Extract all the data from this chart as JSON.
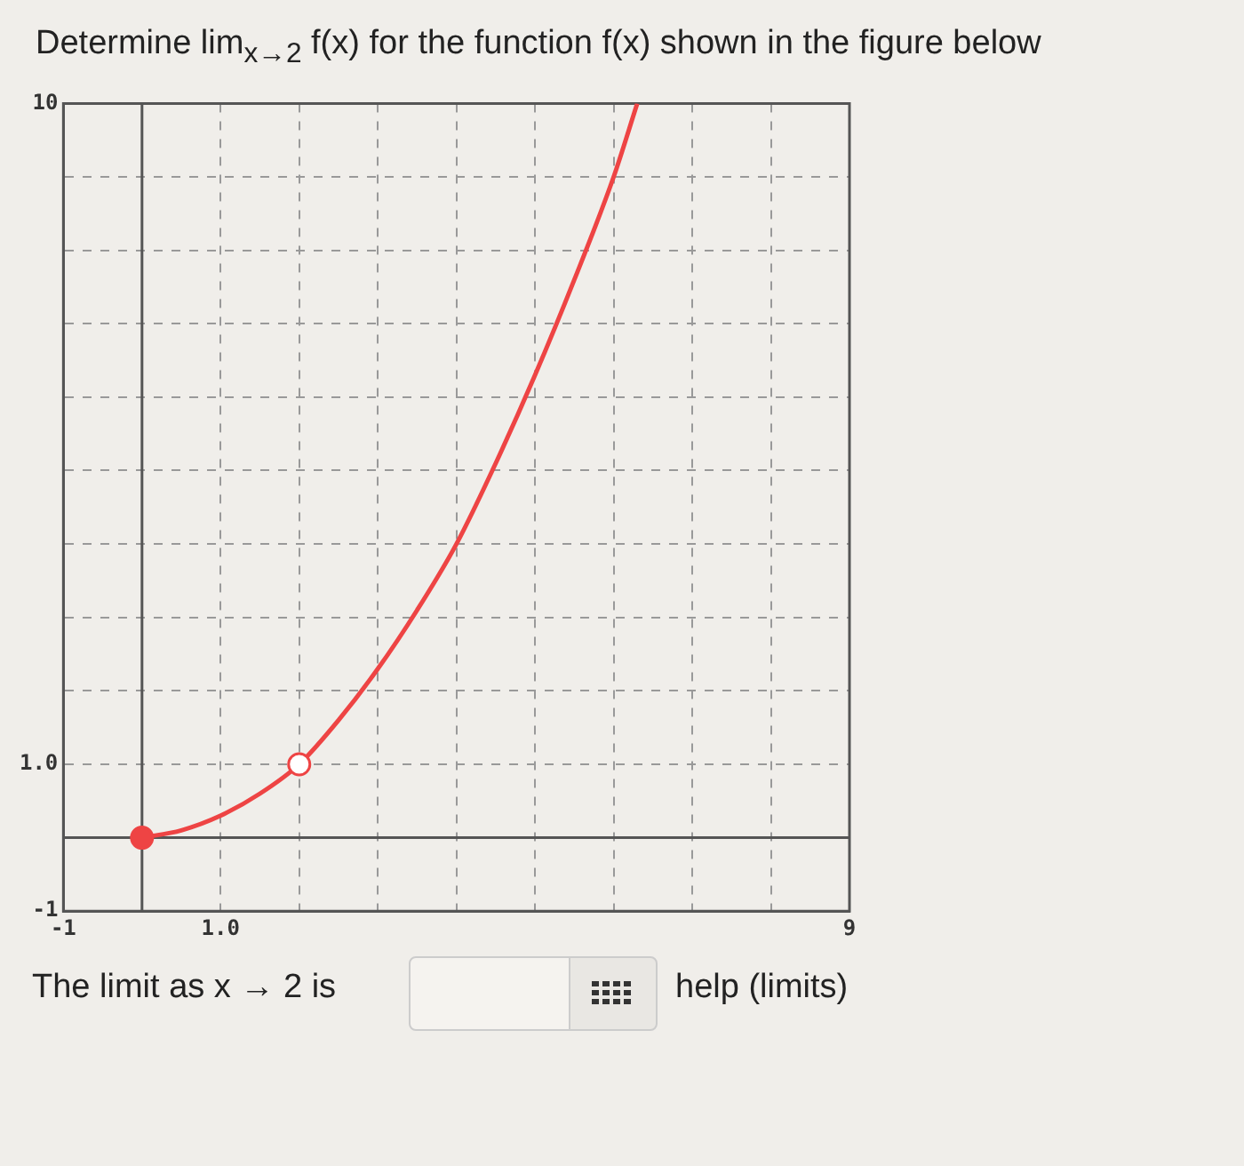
{
  "chart_data": {
    "type": "line",
    "title": "Determine lim$_{x→2}$ f(x) for the function f(x) shown in the figure below",
    "annotations": [
      "The limit as x → 2 is",
      "help (limits)"
    ],
    "xlim": [
      -1,
      9
    ],
    "ylim": [
      -1,
      10
    ],
    "xticks": [
      -1,
      {
        "value": 0,
        "label": null
      },
      {
        "value": 1,
        "label": "1.0"
      },
      {
        "value": 2,
        "label": null
      },
      {
        "value": 3,
        "label": null
      },
      {
        "value": 4,
        "label": null
      },
      {
        "value": 5,
        "label": null
      },
      {
        "value": 6,
        "label": null
      },
      {
        "value": 7,
        "label": null
      },
      {
        "value": 8,
        "label": null
      },
      9
    ],
    "yticks": [
      -1,
      {
        "value": 0,
        "label": null
      },
      {
        "value": 1,
        "label": "1.0"
      },
      {
        "value": 2,
        "label": null
      },
      {
        "value": 3,
        "label": null
      },
      {
        "value": 4,
        "label": null
      },
      {
        "value": 5,
        "label": null
      },
      {
        "value": 6,
        "label": null
      },
      {
        "value": 7,
        "label": null
      },
      {
        "value": 8,
        "label": null
      },
      {
        "value": 9,
        "label": null
      },
      10
    ],
    "grid": true,
    "legend": false,
    "series": [
      {
        "type": "line",
        "marker": "none",
        "color": "#ee4444",
        "x": [
          0,
          0.5,
          1,
          1.5,
          2,
          2.5,
          3,
          3.5,
          4,
          4.5,
          5,
          5.5,
          6,
          6.3
        ],
        "values": [
          0,
          0.1,
          0.3,
          0.6,
          1,
          1.6,
          2.3,
          3.1,
          4,
          5.1,
          6.3,
          7.6,
          9,
          10
        ]
      },
      {
        "type": "scatter",
        "marker": "circle",
        "color": "#ee4444",
        "x": [
          0
        ],
        "values": [
          0
        ]
      },
      {
        "type": "scatter",
        "marker": "circle",
        "color": "#ffffff",
        "x": [
          2
        ],
        "values": [
          1
        ]
      }
    ]
  }
}
